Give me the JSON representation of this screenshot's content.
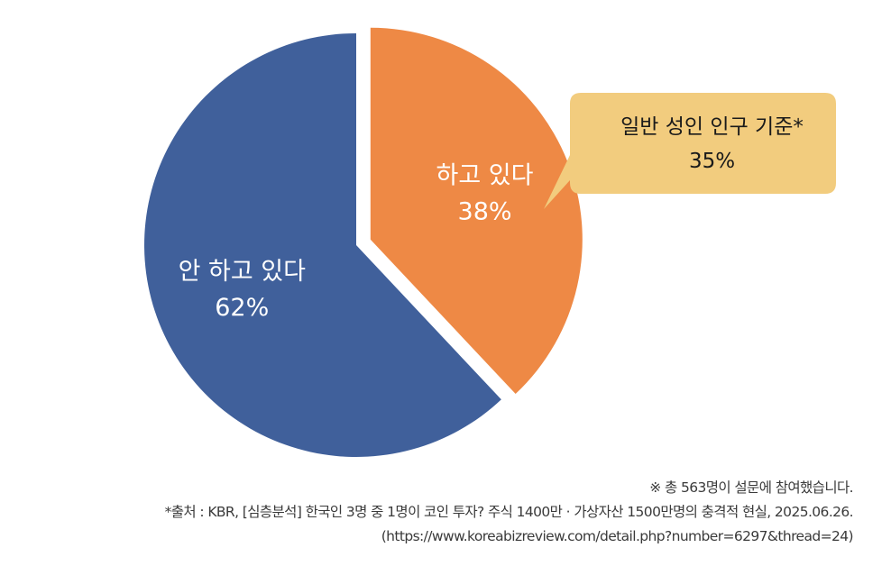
{
  "chart_data": {
    "type": "pie",
    "slices": [
      {
        "label": "하고 있다",
        "value": 38,
        "value_label": "38%",
        "color": "#EE8945",
        "exploded": true
      },
      {
        "label": "안 하고 있다",
        "value": 62,
        "value_label": "62%",
        "color": "#40609B",
        "exploded": false
      }
    ],
    "callout": {
      "line1": "일반 성인 인구 기준*",
      "line2": "35%",
      "color": "#F2CC7E",
      "points_to": "하고 있다"
    },
    "legend": "none"
  },
  "footnotes": {
    "survey_note": "※ 총 563명이 설문에 참여했습니다.",
    "source": "*출처 : KBR, [심층분석] 한국인 3명 중 1명이 코인 투자? 주식 1400만 · 가상자산 1500만명의 충격적 현실, 2025.06.26.",
    "url": "(https://www.koreabizreview.com/detail.php?number=6297&thread=24)"
  }
}
